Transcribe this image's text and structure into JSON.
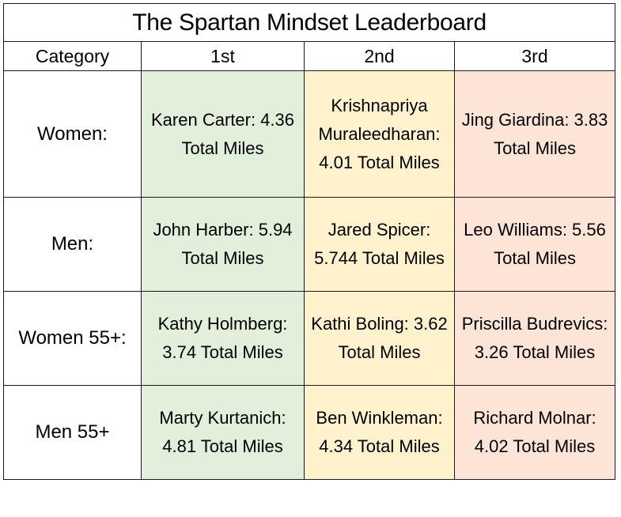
{
  "title": "The Spartan Mindset Leaderboard",
  "headers": {
    "category": "Category",
    "first": "1st",
    "second": "2nd",
    "third": "3rd"
  },
  "rows": [
    {
      "category": "Women:",
      "first": "Karen Carter: 4.36 Total Miles",
      "second": "Krishnapriya Muraleedharan: 4.01 Total Miles",
      "third": "Jing Giardina: 3.83 Total Miles"
    },
    {
      "category": "Men:",
      "first": "John Harber: 5.94 Total Miles",
      "second": "Jared Spicer: 5.744 Total Miles",
      "third": "Leo Williams: 5.56 Total Miles"
    },
    {
      "category": "Women 55+:",
      "first": "Kathy Holmberg: 3.74 Total Miles",
      "second": "Kathi Boling: 3.62 Total Miles",
      "third": "Priscilla Budrevics: 3.26 Total Miles"
    },
    {
      "category": "Men 55+",
      "first": "Marty Kurtanich: 4.81 Total Miles",
      "second": "Ben Winkleman: 4.34 Total Miles",
      "third": "Richard Molnar: 4.02 Total Miles"
    }
  ],
  "colors": {
    "first_place": "#e2efda",
    "second_place": "#fff2cc",
    "third_place": "#fce4d6",
    "border": "#1a1a1a"
  }
}
